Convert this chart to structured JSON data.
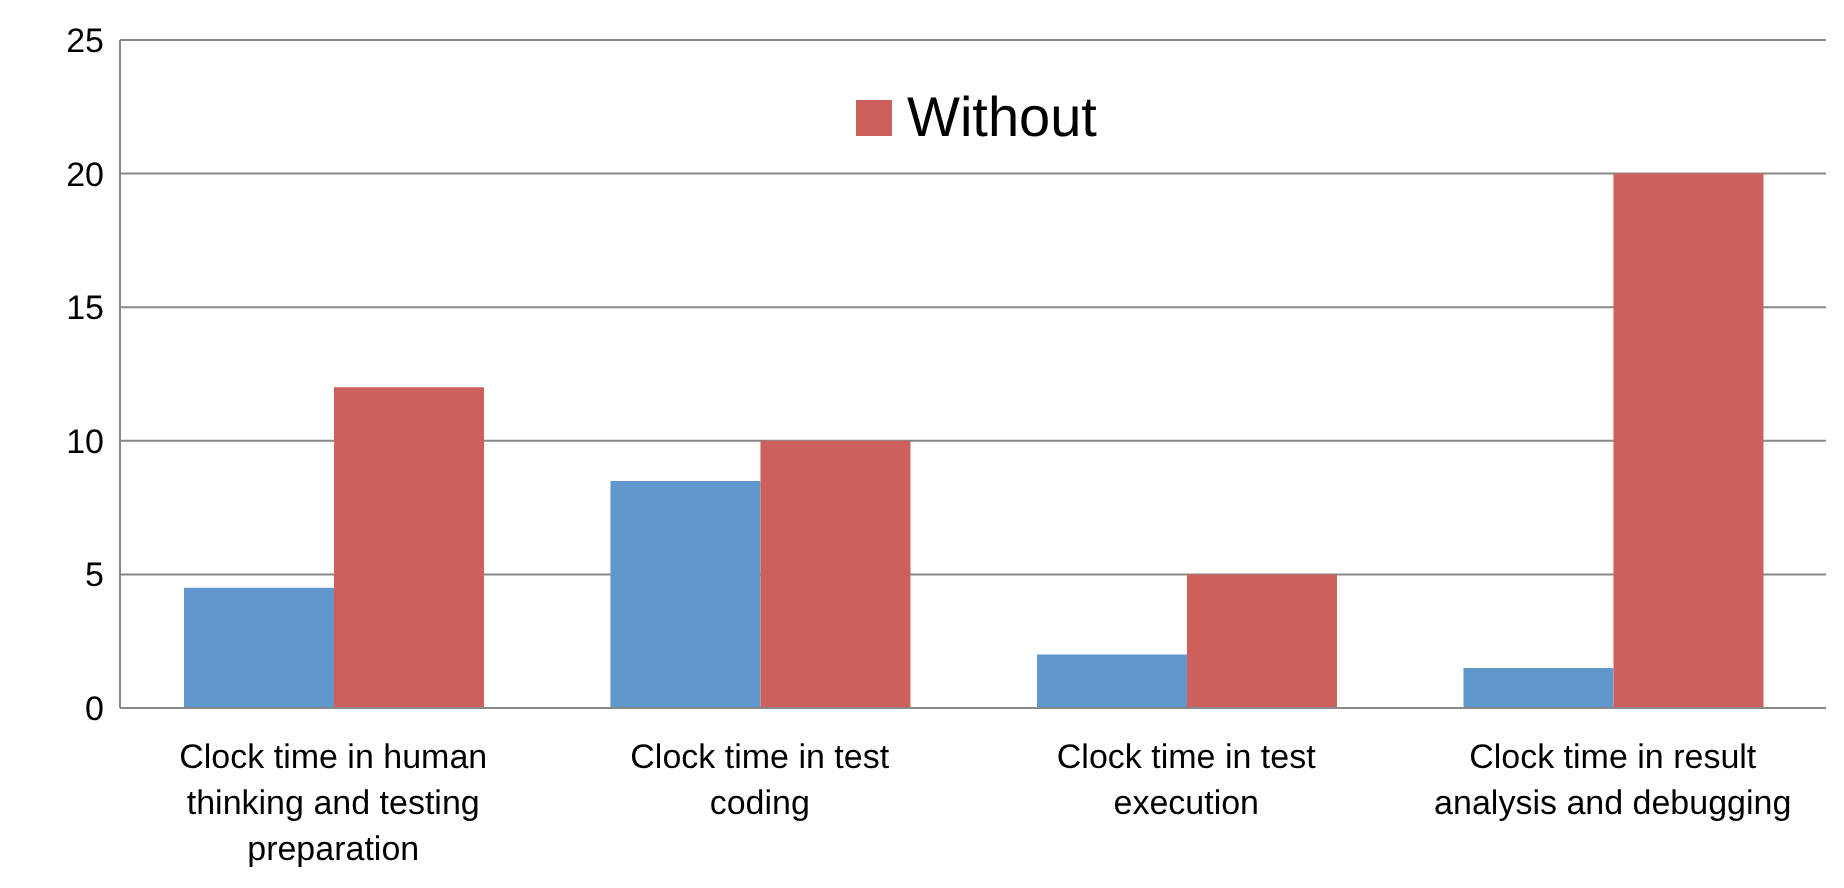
{
  "chart_data": {
    "type": "bar",
    "categories": [
      "Clock time in human thinking and testing preparation",
      "Clock time in test coding",
      "Clock time in test execution",
      "Clock time in result analysis and debugging"
    ],
    "series": [
      {
        "color": "#6097cd",
        "values": [
          4.5,
          8.5,
          2,
          1.5
        ]
      },
      {
        "name": "Without",
        "color": "#cd605c",
        "values": [
          12,
          10,
          5,
          20
        ]
      }
    ],
    "ylim": [
      0,
      25
    ],
    "yticks": [
      0,
      5,
      10,
      15,
      20,
      25
    ],
    "grid": "y",
    "legend": "top"
  }
}
